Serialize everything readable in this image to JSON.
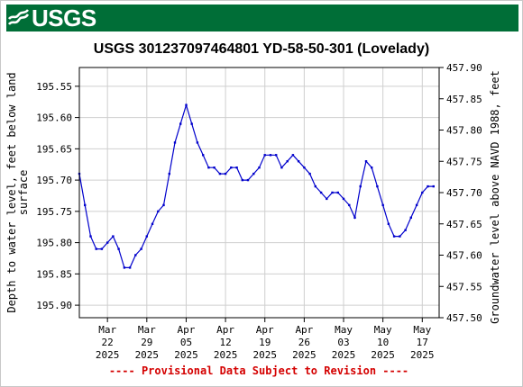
{
  "header": {
    "logo_text": "USGS",
    "brand_color": "#006e37"
  },
  "chart_data": {
    "type": "line",
    "title": "USGS 301237097464801 YD-58-50-301 (Lovelady)",
    "ylabel_left_line1": "Depth to water level, feet below land",
    "ylabel_left_line2": "surface",
    "ylabel_right": "Groundwater level above NAVD 1988, feet",
    "ylim_left": [
      195.92,
      195.52
    ],
    "ylim_right": [
      457.5,
      457.9
    ],
    "y_ticks_left": [
      195.55,
      195.6,
      195.65,
      195.7,
      195.75,
      195.8,
      195.85,
      195.9
    ],
    "y_ticks_right": [
      "457.90",
      "457.85",
      "457.80",
      "457.75",
      "457.70",
      "457.65",
      "457.60",
      "457.55",
      "457.50"
    ],
    "xlim": [
      "2025-03-17",
      "2025-05-20"
    ],
    "x_ticks": [
      {
        "month": "Mar",
        "day": "22",
        "year": "2025",
        "date": "2025-03-22"
      },
      {
        "month": "Mar",
        "day": "29",
        "year": "2025",
        "date": "2025-03-29"
      },
      {
        "month": "Apr",
        "day": "05",
        "year": "2025",
        "date": "2025-04-05"
      },
      {
        "month": "Apr",
        "day": "12",
        "year": "2025",
        "date": "2025-04-12"
      },
      {
        "month": "Apr",
        "day": "19",
        "year": "2025",
        "date": "2025-04-19"
      },
      {
        "month": "Apr",
        "day": "26",
        "year": "2025",
        "date": "2025-04-26"
      },
      {
        "month": "May",
        "day": "03",
        "year": "2025",
        "date": "2025-05-03"
      },
      {
        "month": "May",
        "day": "10",
        "year": "2025",
        "date": "2025-05-10"
      },
      {
        "month": "May",
        "day": "17",
        "year": "2025",
        "date": "2025-05-17"
      }
    ],
    "line_color": "#0000cc",
    "grid": true,
    "series": [
      {
        "x": [
          "2025-03-17",
          "2025-03-18",
          "2025-03-19",
          "2025-03-20",
          "2025-03-21",
          "2025-03-22",
          "2025-03-23",
          "2025-03-24",
          "2025-03-25",
          "2025-03-26",
          "2025-03-27",
          "2025-03-28",
          "2025-03-29",
          "2025-03-30",
          "2025-03-31",
          "2025-04-01",
          "2025-04-02",
          "2025-04-03",
          "2025-04-04",
          "2025-04-05",
          "2025-04-06",
          "2025-04-07",
          "2025-04-08",
          "2025-04-09",
          "2025-04-10",
          "2025-04-11",
          "2025-04-12",
          "2025-04-13",
          "2025-04-14",
          "2025-04-15",
          "2025-04-16",
          "2025-04-17",
          "2025-04-18",
          "2025-04-19",
          "2025-04-20",
          "2025-04-21",
          "2025-04-22",
          "2025-04-23",
          "2025-04-24",
          "2025-04-25",
          "2025-04-26",
          "2025-04-27",
          "2025-04-28",
          "2025-04-29",
          "2025-04-30",
          "2025-05-01",
          "2025-05-02",
          "2025-05-03",
          "2025-05-04",
          "2025-05-05",
          "2025-05-06",
          "2025-05-07",
          "2025-05-08",
          "2025-05-09",
          "2025-05-10",
          "2025-05-11",
          "2025-05-12",
          "2025-05-13",
          "2025-05-14",
          "2025-05-15",
          "2025-05-16",
          "2025-05-17",
          "2025-05-18",
          "2025-05-19"
        ],
        "y": [
          195.69,
          195.74,
          195.79,
          195.81,
          195.81,
          195.8,
          195.79,
          195.81,
          195.84,
          195.84,
          195.82,
          195.81,
          195.79,
          195.77,
          195.75,
          195.74,
          195.69,
          195.64,
          195.61,
          195.58,
          195.61,
          195.64,
          195.66,
          195.68,
          195.68,
          195.69,
          195.69,
          195.68,
          195.68,
          195.7,
          195.7,
          195.69,
          195.68,
          195.66,
          195.66,
          195.66,
          195.68,
          195.67,
          195.66,
          195.67,
          195.68,
          195.69,
          195.71,
          195.72,
          195.73,
          195.72,
          195.72,
          195.73,
          195.74,
          195.76,
          195.71,
          195.67,
          195.68,
          195.71,
          195.74,
          195.77,
          195.79,
          195.79,
          195.78,
          195.76,
          195.74,
          195.72,
          195.71,
          195.71
        ]
      }
    ]
  },
  "footer": {
    "provisional_note": "---- Provisional Data Subject to Revision ----",
    "note_color": "#d40000"
  }
}
